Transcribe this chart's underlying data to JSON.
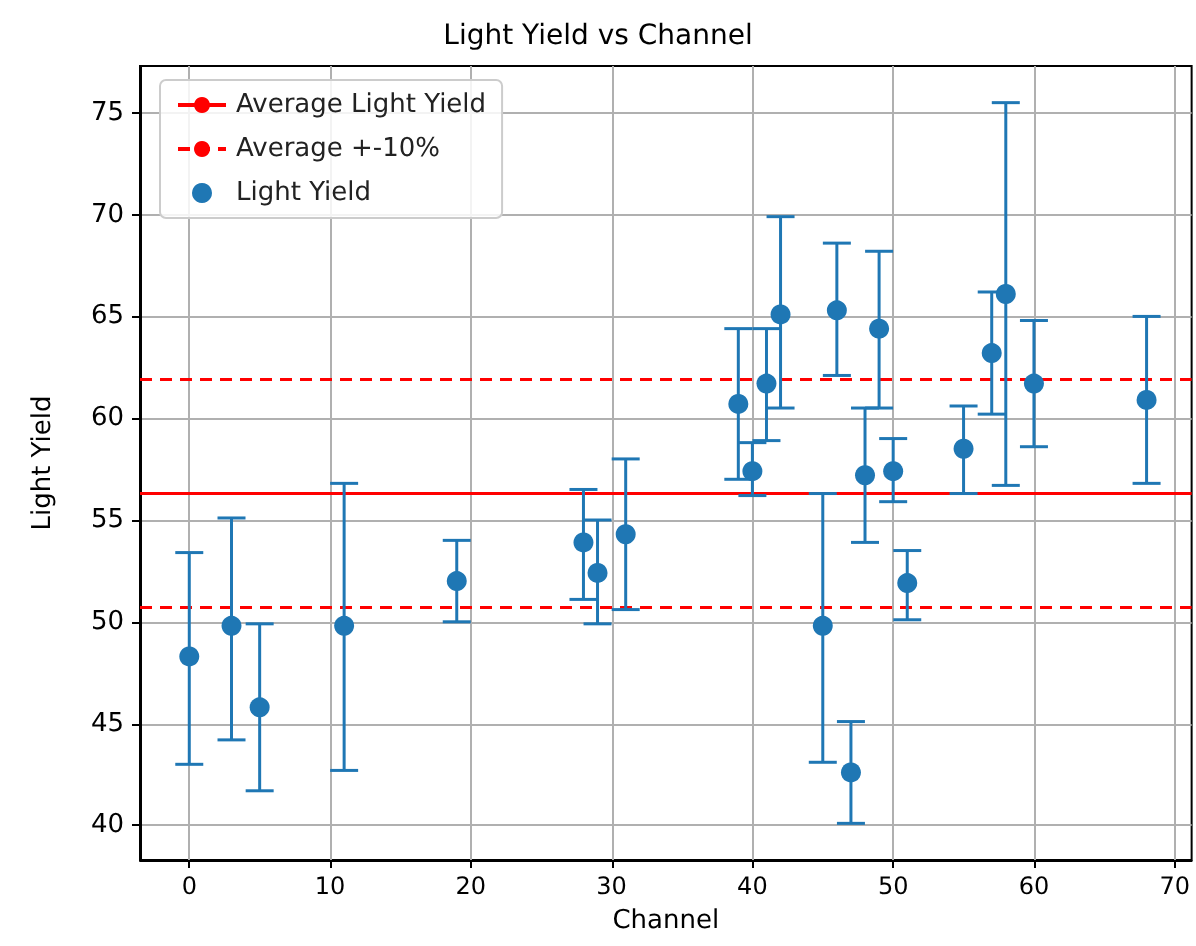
{
  "chart_data": {
    "type": "scatter",
    "title": "Light Yield vs Channel",
    "xlabel": "Channel",
    "ylabel": "Light Yield",
    "x": [
      0,
      3,
      5,
      11,
      19,
      28,
      29,
      31,
      39,
      40,
      41,
      42,
      45,
      46,
      47,
      48,
      49,
      50,
      51,
      55,
      57,
      58,
      60,
      68
    ],
    "series": [
      {
        "name": "Light Yield",
        "color": "#1f77b4",
        "values": [
          48.3,
          49.8,
          45.8,
          49.8,
          52.0,
          53.9,
          52.4,
          54.3,
          60.7,
          57.4,
          61.7,
          65.1,
          49.8,
          65.3,
          42.6,
          57.2,
          64.4,
          57.4,
          51.9,
          58.5,
          63.2,
          66.1,
          61.7,
          60.9
        ],
        "errors": [
          [
            43.0,
            53.4
          ],
          [
            44.2,
            55.1
          ],
          [
            41.7,
            49.9
          ],
          [
            42.7,
            56.8
          ],
          [
            50.0,
            54.0
          ],
          [
            51.1,
            56.5
          ],
          [
            49.9,
            55.0
          ],
          [
            50.6,
            58.0
          ],
          [
            57.0,
            64.4
          ],
          [
            56.2,
            58.8
          ],
          [
            58.9,
            64.4
          ],
          [
            60.5,
            69.9
          ],
          [
            43.1,
            56.3
          ],
          [
            62.1,
            68.6
          ],
          [
            40.1,
            45.1
          ],
          [
            53.9,
            60.5
          ],
          [
            60.5,
            68.2
          ],
          [
            55.9,
            59.0
          ],
          [
            50.1,
            53.5
          ],
          [
            56.3,
            60.6
          ],
          [
            60.2,
            66.2
          ],
          [
            56.7,
            75.5
          ],
          [
            58.6,
            64.8
          ],
          [
            56.8,
            65.0
          ]
        ]
      }
    ],
    "ref_lines": [
      {
        "axis": "y",
        "value": 56.3,
        "label": "Average Light Yield",
        "color": "#ff0000",
        "line_style": "solid"
      },
      {
        "axis": "y",
        "value": 61.9,
        "label": "Average +-10%",
        "color": "#ff0000",
        "line_style": "dashed"
      },
      {
        "axis": "y",
        "value": 50.7,
        "label": null,
        "color": "#ff0000",
        "line_style": "dashed"
      }
    ],
    "xlim": [
      -3.5,
      71.2
    ],
    "xticks": [
      0,
      10,
      20,
      30,
      40,
      50,
      60,
      70
    ],
    "ylim": [
      38.3,
      77.3
    ],
    "yticks": [
      40,
      45,
      50,
      55,
      60,
      65,
      70,
      75
    ],
    "grid": true,
    "legend": "top left",
    "marker": "circle"
  }
}
